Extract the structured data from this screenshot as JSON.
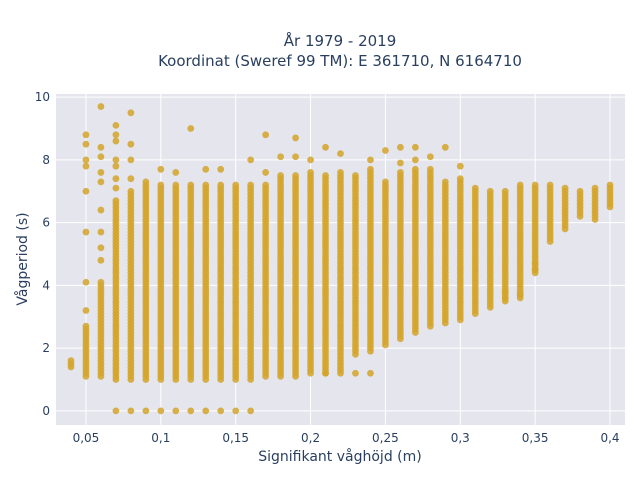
{
  "chart_data": {
    "type": "scatter",
    "title_line1": "År 1979 - 2019",
    "title_line2": "Koordinat (Sweref 99 TM): E 361710, N 6164710",
    "xlabel": "Signifikant våghöjd (m)",
    "ylabel": "Vågperiod (s)",
    "xlim": [
      0.03,
      0.41
    ],
    "ylim": [
      -0.45,
      10.1
    ],
    "xticks": [
      0.05,
      0.1,
      0.15,
      0.2,
      0.25,
      0.3,
      0.35,
      0.4
    ],
    "xtick_labels": [
      "0,05",
      "0,1",
      "0,15",
      "0,2",
      "0,25",
      "0,3",
      "0,35",
      "0,4"
    ],
    "yticks": [
      0,
      2,
      4,
      6,
      8,
      10
    ],
    "ytick_labels": [
      "0",
      "2",
      "4",
      "6",
      "8",
      "10"
    ],
    "grid": true,
    "marker_color": "#D4A52A",
    "background_color": "#E5E5EE",
    "series": [
      {
        "columns": [
          {
            "x": 0.04,
            "y_min": 1.4,
            "y_max": 1.6
          },
          {
            "x": 0.05,
            "y_min": 1.1,
            "y_max": 2.7,
            "extra_y": [
              3.2,
              4.1,
              5.7,
              7.0,
              7.8,
              8.0,
              8.5,
              8.8
            ]
          },
          {
            "x": 0.06,
            "y_min": 1.1,
            "y_max": 4.1,
            "extra_y": [
              4.8,
              5.2,
              5.7,
              6.4,
              7.3,
              7.6,
              8.1,
              8.4,
              9.7
            ]
          },
          {
            "x": 0.07,
            "y_min": 1.0,
            "y_max": 6.7,
            "extra_y": [
              7.1,
              7.4,
              7.8,
              8.0,
              8.6,
              8.8,
              9.1
            ]
          },
          {
            "x": 0.08,
            "y_min": 1.0,
            "y_max": 7.0,
            "extra_y": [
              7.4,
              8.0,
              8.5,
              9.5
            ]
          },
          {
            "x": 0.09,
            "y_min": 1.0,
            "y_max": 7.3
          },
          {
            "x": 0.1,
            "y_min": 1.0,
            "y_max": 7.2,
            "extra_y": [
              7.7
            ]
          },
          {
            "x": 0.11,
            "y_min": 1.0,
            "y_max": 7.2,
            "extra_y": [
              7.6
            ]
          },
          {
            "x": 0.12,
            "y_min": 1.0,
            "y_max": 7.2,
            "extra_y": [
              9.0
            ]
          },
          {
            "x": 0.13,
            "y_min": 1.0,
            "y_max": 7.2,
            "extra_y": [
              7.7
            ]
          },
          {
            "x": 0.14,
            "y_min": 1.0,
            "y_max": 7.2,
            "extra_y": [
              7.7
            ]
          },
          {
            "x": 0.15,
            "y_min": 1.0,
            "y_max": 7.2
          },
          {
            "x": 0.16,
            "y_min": 1.0,
            "y_max": 7.2,
            "extra_y": [
              8.0
            ]
          },
          {
            "x": 0.17,
            "y_min": 1.1,
            "y_max": 7.2,
            "extra_y": [
              7.6,
              8.8
            ]
          },
          {
            "x": 0.18,
            "y_min": 1.1,
            "y_max": 7.5,
            "extra_y": [
              8.1
            ]
          },
          {
            "x": 0.19,
            "y_min": 1.1,
            "y_max": 7.5,
            "extra_y": [
              8.1,
              8.7
            ]
          },
          {
            "x": 0.2,
            "y_min": 1.2,
            "y_max": 7.6,
            "extra_y": [
              8.0
            ]
          },
          {
            "x": 0.21,
            "y_min": 1.2,
            "y_max": 7.5,
            "extra_y": [
              8.4
            ]
          },
          {
            "x": 0.22,
            "y_min": 1.3,
            "y_max": 7.6,
            "extra_y": [
              8.2
            ]
          },
          {
            "x": 0.23,
            "y_min": 1.8,
            "y_max": 7.5
          },
          {
            "x": 0.24,
            "y_min": 1.9,
            "y_max": 7.7,
            "extra_y": [
              8.0
            ]
          },
          {
            "x": 0.25,
            "y_min": 2.1,
            "y_max": 7.3,
            "extra_y": [
              8.3
            ]
          },
          {
            "x": 0.26,
            "y_min": 2.3,
            "y_max": 7.6,
            "extra_y": [
              7.9,
              8.4
            ]
          },
          {
            "x": 0.27,
            "y_min": 2.5,
            "y_max": 7.7,
            "extra_y": [
              8.0,
              8.4
            ]
          },
          {
            "x": 0.28,
            "y_min": 2.7,
            "y_max": 7.7,
            "extra_y": [
              8.1
            ]
          },
          {
            "x": 0.29,
            "y_min": 2.8,
            "y_max": 7.3,
            "extra_y": [
              8.4
            ]
          },
          {
            "x": 0.3,
            "y_min": 2.9,
            "y_max": 7.4,
            "extra_y": [
              7.8
            ]
          },
          {
            "x": 0.31,
            "y_min": 3.1,
            "y_max": 7.1
          },
          {
            "x": 0.32,
            "y_min": 3.3,
            "y_max": 7.0
          },
          {
            "x": 0.33,
            "y_min": 3.5,
            "y_max": 7.0
          },
          {
            "x": 0.34,
            "y_min": 3.6,
            "y_max": 7.2
          },
          {
            "x": 0.35,
            "y_min": 4.4,
            "y_max": 7.2
          },
          {
            "x": 0.36,
            "y_min": 5.4,
            "y_max": 7.2
          },
          {
            "x": 0.37,
            "y_min": 5.8,
            "y_max": 7.1
          },
          {
            "x": 0.38,
            "y_min": 6.2,
            "y_max": 7.0
          },
          {
            "x": 0.39,
            "y_min": 6.1,
            "y_max": 7.1
          },
          {
            "x": 0.4,
            "y_min": 6.5,
            "y_max": 7.2
          }
        ],
        "isolated_points": [
          [
            0.33,
            3.6
          ],
          [
            0.33,
            3.8
          ],
          [
            0.34,
            3.7
          ],
          [
            0.35,
            4.5
          ],
          [
            0.35,
            4.7
          ],
          [
            0.21,
            1.2
          ],
          [
            0.22,
            1.2
          ],
          [
            0.23,
            1.2
          ],
          [
            0.24,
            1.2
          ],
          [
            0.07,
            0
          ],
          [
            0.08,
            0
          ],
          [
            0.09,
            0
          ],
          [
            0.1,
            0
          ],
          [
            0.11,
            0
          ],
          [
            0.12,
            0
          ],
          [
            0.13,
            0
          ],
          [
            0.14,
            0
          ],
          [
            0.15,
            0
          ],
          [
            0.16,
            0
          ]
        ]
      }
    ]
  }
}
